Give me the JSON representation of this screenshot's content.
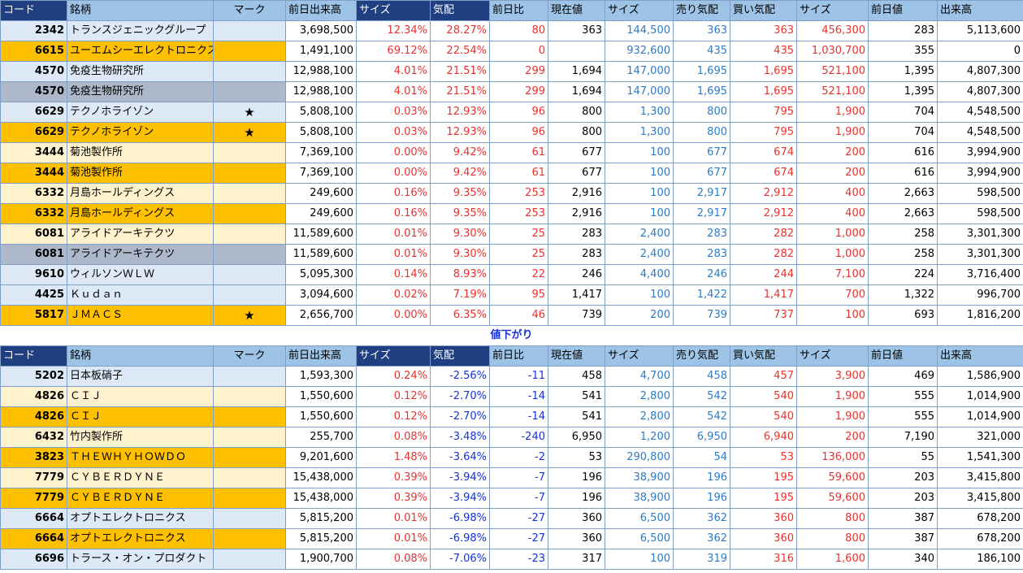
{
  "headers": [
    "コード",
    "銘柄",
    "マーク",
    "前日出来高",
    "サイズ",
    "気配",
    "前日比",
    "現在値",
    "サイズ",
    "売り気配",
    "買い気配",
    "サイズ",
    "前日値",
    "出来高"
  ],
  "separator_label": "値下がり",
  "gainers": [
    {
      "c": "lb",
      "code": "2342",
      "name": "トランスジェニックグループ",
      "mark": "",
      "pv": "3,698,500",
      "s1": "12.34%",
      "q": "28.27%",
      "chg": "80",
      "cur": "363",
      "s2": "144,500",
      "ask": "363",
      "bid": "363",
      "s3": "456,300",
      "prev": "283",
      "vol": "5,113,600"
    },
    {
      "c": "or",
      "code": "6615",
      "name": "ユーエムシーエレクトロニクス",
      "mark": "",
      "pv": "1,491,100",
      "s1": "69.12%",
      "q": "22.54%",
      "chg": "0",
      "cur": "",
      "s2": "932,600",
      "ask": "435",
      "bid": "435",
      "s3": "1,030,700",
      "prev": "355",
      "vol": "0"
    },
    {
      "c": "lb",
      "code": "4570",
      "name": "免疫生物研究所",
      "mark": "",
      "pv": "12,988,100",
      "s1": "4.01%",
      "q": "21.51%",
      "chg": "299",
      "cur": "1,694",
      "s2": "147,000",
      "ask": "1,695",
      "bid": "1,695",
      "s3": "521,100",
      "prev": "1,395",
      "vol": "4,807,300"
    },
    {
      "c": "gy",
      "code": "4570",
      "name": "免疫生物研究所",
      "mark": "",
      "pv": "12,988,100",
      "s1": "4.01%",
      "q": "21.51%",
      "chg": "299",
      "cur": "1,694",
      "s2": "147,000",
      "ask": "1,695",
      "bid": "1,695",
      "s3": "521,100",
      "prev": "1,395",
      "vol": "4,807,300"
    },
    {
      "c": "lb",
      "code": "6629",
      "name": "テクノホライゾン",
      "mark": "★",
      "pv": "5,808,100",
      "s1": "0.03%",
      "q": "12.93%",
      "chg": "96",
      "cur": "800",
      "s2": "1,300",
      "ask": "800",
      "bid": "795",
      "s3": "1,900",
      "prev": "704",
      "vol": "4,548,500"
    },
    {
      "c": "or",
      "code": "6629",
      "name": "テクノホライゾン",
      "mark": "★",
      "pv": "5,808,100",
      "s1": "0.03%",
      "q": "12.93%",
      "chg": "96",
      "cur": "800",
      "s2": "1,300",
      "ask": "800",
      "bid": "795",
      "s3": "1,900",
      "prev": "704",
      "vol": "4,548,500"
    },
    {
      "c": "cr",
      "code": "3444",
      "name": "菊池製作所",
      "mark": "",
      "pv": "7,369,100",
      "s1": "0.00%",
      "q": "9.42%",
      "chg": "61",
      "cur": "677",
      "s2": "100",
      "ask": "677",
      "bid": "674",
      "s3": "200",
      "prev": "616",
      "vol": "3,994,900"
    },
    {
      "c": "or",
      "code": "3444",
      "name": "菊池製作所",
      "mark": "",
      "pv": "7,369,100",
      "s1": "0.00%",
      "q": "9.42%",
      "chg": "61",
      "cur": "677",
      "s2": "100",
      "ask": "677",
      "bid": "674",
      "s3": "200",
      "prev": "616",
      "vol": "3,994,900"
    },
    {
      "c": "cr",
      "code": "6332",
      "name": "月島ホールディングス",
      "mark": "",
      "pv": "249,600",
      "s1": "0.16%",
      "q": "9.35%",
      "chg": "253",
      "cur": "2,916",
      "s2": "100",
      "ask": "2,917",
      "bid": "2,912",
      "s3": "400",
      "prev": "2,663",
      "vol": "598,500"
    },
    {
      "c": "or",
      "code": "6332",
      "name": "月島ホールディングス",
      "mark": "",
      "pv": "249,600",
      "s1": "0.16%",
      "q": "9.35%",
      "chg": "253",
      "cur": "2,916",
      "s2": "100",
      "ask": "2,917",
      "bid": "2,912",
      "s3": "400",
      "prev": "2,663",
      "vol": "598,500"
    },
    {
      "c": "cr",
      "code": "6081",
      "name": "アライドアーキテクツ",
      "mark": "",
      "pv": "11,589,600",
      "s1": "0.01%",
      "q": "9.30%",
      "chg": "25",
      "cur": "283",
      "s2": "2,400",
      "ask": "283",
      "bid": "282",
      "s3": "1,000",
      "prev": "258",
      "vol": "3,301,300"
    },
    {
      "c": "gy",
      "code": "6081",
      "name": "アライドアーキテクツ",
      "mark": "",
      "pv": "11,589,600",
      "s1": "0.01%",
      "q": "9.30%",
      "chg": "25",
      "cur": "283",
      "s2": "2,400",
      "ask": "283",
      "bid": "282",
      "s3": "1,000",
      "prev": "258",
      "vol": "3,301,300"
    },
    {
      "c": "lb",
      "code": "9610",
      "name": "ウィルソンＷＬＷ",
      "mark": "",
      "pv": "5,095,300",
      "s1": "0.14%",
      "q": "8.93%",
      "chg": "22",
      "cur": "246",
      "s2": "4,400",
      "ask": "246",
      "bid": "244",
      "s3": "7,100",
      "prev": "224",
      "vol": "3,716,400"
    },
    {
      "c": "lb",
      "code": "4425",
      "name": "Ｋｕｄａｎ",
      "mark": "",
      "pv": "3,094,600",
      "s1": "0.02%",
      "q": "7.19%",
      "chg": "95",
      "cur": "1,417",
      "s2": "100",
      "ask": "1,422",
      "bid": "1,417",
      "s3": "700",
      "prev": "1,322",
      "vol": "996,700"
    },
    {
      "c": "or",
      "code": "5817",
      "name": "ＪＭＡＣＳ",
      "mark": "★",
      "pv": "2,656,700",
      "s1": "0.00%",
      "q": "6.35%",
      "chg": "46",
      "cur": "739",
      "s2": "200",
      "ask": "739",
      "bid": "737",
      "s3": "100",
      "prev": "693",
      "vol": "1,816,200"
    }
  ],
  "losers": [
    {
      "c": "lb",
      "code": "5202",
      "name": "日本板硝子",
      "mark": "",
      "pv": "1,593,300",
      "s1": "0.24%",
      "q": "-2.56%",
      "chg": "-11",
      "cur": "458",
      "s2": "4,700",
      "ask": "458",
      "bid": "457",
      "s3": "3,900",
      "prev": "469",
      "vol": "1,586,900"
    },
    {
      "c": "cr",
      "code": "4826",
      "name": "ＣＩＪ",
      "mark": "",
      "pv": "1,550,600",
      "s1": "0.12%",
      "q": "-2.70%",
      "chg": "-14",
      "cur": "541",
      "s2": "2,800",
      "ask": "542",
      "bid": "540",
      "s3": "1,900",
      "prev": "555",
      "vol": "1,014,900"
    },
    {
      "c": "or",
      "code": "4826",
      "name": "ＣＩＪ",
      "mark": "",
      "pv": "1,550,600",
      "s1": "0.12%",
      "q": "-2.70%",
      "chg": "-14",
      "cur": "541",
      "s2": "2,800",
      "ask": "542",
      "bid": "540",
      "s3": "1,900",
      "prev": "555",
      "vol": "1,014,900"
    },
    {
      "c": "cr",
      "code": "6432",
      "name": "竹内製作所",
      "mark": "",
      "pv": "255,700",
      "s1": "0.08%",
      "q": "-3.48%",
      "chg": "-240",
      "cur": "6,950",
      "s2": "1,200",
      "ask": "6,950",
      "bid": "6,940",
      "s3": "200",
      "prev": "7,190",
      "vol": "321,000"
    },
    {
      "c": "or",
      "code": "3823",
      "name": "ＴＨＥＷＨＹＨＯＷＤＯ",
      "mark": "",
      "pv": "9,201,600",
      "s1": "1.48%",
      "q": "-3.64%",
      "chg": "-2",
      "cur": "53",
      "s2": "290,800",
      "ask": "54",
      "bid": "53",
      "s3": "136,000",
      "prev": "55",
      "vol": "1,541,300"
    },
    {
      "c": "cr",
      "code": "7779",
      "name": "ＣＹＢＥＲＤＹＮＥ",
      "mark": "",
      "pv": "15,438,000",
      "s1": "0.39%",
      "q": "-3.94%",
      "chg": "-7",
      "cur": "196",
      "s2": "38,900",
      "ask": "196",
      "bid": "195",
      "s3": "59,600",
      "prev": "203",
      "vol": "3,415,800"
    },
    {
      "c": "or",
      "code": "7779",
      "name": "ＣＹＢＥＲＤＹＮＥ",
      "mark": "",
      "pv": "15,438,000",
      "s1": "0.39%",
      "q": "-3.94%",
      "chg": "-7",
      "cur": "196",
      "s2": "38,900",
      "ask": "196",
      "bid": "195",
      "s3": "59,600",
      "prev": "203",
      "vol": "3,415,800"
    },
    {
      "c": "lb",
      "code": "6664",
      "name": "オプトエレクトロニクス",
      "mark": "",
      "pv": "5,815,200",
      "s1": "0.01%",
      "q": "-6.98%",
      "chg": "-27",
      "cur": "360",
      "s2": "6,500",
      "ask": "362",
      "bid": "360",
      "s3": "800",
      "prev": "387",
      "vol": "678,200"
    },
    {
      "c": "or",
      "code": "6664",
      "name": "オプトエレクトロニクス",
      "mark": "",
      "pv": "5,815,200",
      "s1": "0.01%",
      "q": "-6.98%",
      "chg": "-27",
      "cur": "360",
      "s2": "6,500",
      "ask": "362",
      "bid": "360",
      "s3": "800",
      "prev": "387",
      "vol": "678,200"
    },
    {
      "c": "lb",
      "code": "6696",
      "name": "トラース・オン・プロダクト",
      "mark": "",
      "pv": "1,900,700",
      "s1": "0.08%",
      "q": "-7.06%",
      "chg": "-23",
      "cur": "317",
      "s2": "100",
      "ask": "319",
      "bid": "316",
      "s3": "1,600",
      "prev": "340",
      "vol": "186,100"
    }
  ]
}
